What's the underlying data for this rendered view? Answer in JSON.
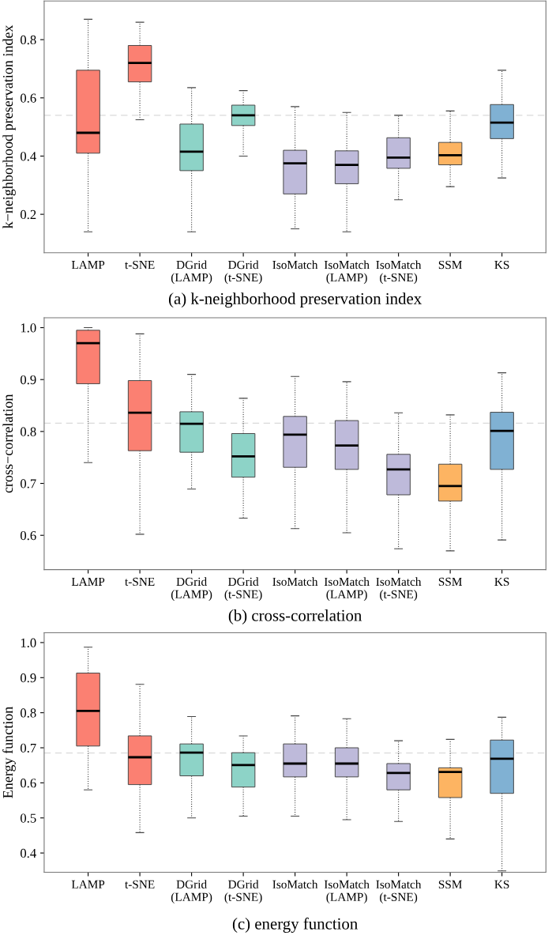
{
  "chart_data": [
    {
      "type": "box",
      "title": "(a) k-neighborhood preservation index",
      "ylabel": "k−neighborhood preservation index",
      "categories": [
        "LAMP",
        "t-SNE",
        "DGrid\n(LAMP)",
        "DGrid\n(t-SNE)",
        "IsoMatch",
        "IsoMatch\n(LAMP)",
        "IsoMatch\n(t-SNE)",
        "SSM",
        "KS"
      ],
      "colors": [
        "#fb8072",
        "#fb8072",
        "#8dd3c7",
        "#8dd3c7",
        "#bebada",
        "#bebada",
        "#bebada",
        "#fdb462",
        "#80b1d3"
      ],
      "boxes": [
        {
          "low": 0.14,
          "q1": 0.41,
          "median": 0.48,
          "q3": 0.695,
          "high": 0.87
        },
        {
          "low": 0.525,
          "q1": 0.655,
          "median": 0.72,
          "q3": 0.78,
          "high": 0.86
        },
        {
          "low": 0.14,
          "q1": 0.35,
          "median": 0.415,
          "q3": 0.51,
          "high": 0.635
        },
        {
          "low": 0.4,
          "q1": 0.505,
          "median": 0.54,
          "q3": 0.575,
          "high": 0.625
        },
        {
          "low": 0.15,
          "q1": 0.27,
          "median": 0.375,
          "q3": 0.42,
          "high": 0.57
        },
        {
          "low": 0.14,
          "q1": 0.305,
          "median": 0.37,
          "q3": 0.418,
          "high": 0.55
        },
        {
          "low": 0.25,
          "q1": 0.358,
          "median": 0.395,
          "q3": 0.463,
          "high": 0.54
        },
        {
          "low": 0.295,
          "q1": 0.37,
          "median": 0.403,
          "q3": 0.447,
          "high": 0.555
        },
        {
          "low": 0.325,
          "q1": 0.46,
          "median": 0.515,
          "q3": 0.577,
          "high": 0.695
        }
      ],
      "ylim": [
        0.068,
        0.933
      ],
      "yticks": [
        0.2,
        0.4,
        0.6,
        0.8
      ],
      "ref_lines": [
        {
          "axis": "y",
          "value": 0.54,
          "color": "#d9d9d9",
          "line_style": "dashed"
        }
      ]
    },
    {
      "type": "box",
      "title": "(b) cross-correlation",
      "ylabel": "cross−correlation",
      "categories": [
        "LAMP",
        "t-SNE",
        "DGrid\n(LAMP)",
        "DGrid\n(t-SNE)",
        "IsoMatch",
        "IsoMatch\n(LAMP)",
        "IsoMatch\n(t-SNE)",
        "SSM",
        "KS"
      ],
      "colors": [
        "#fb8072",
        "#fb8072",
        "#8dd3c7",
        "#8dd3c7",
        "#bebada",
        "#bebada",
        "#bebada",
        "#fdb462",
        "#80b1d3"
      ],
      "boxes": [
        {
          "low": 0.74,
          "q1": 0.892,
          "median": 0.97,
          "q3": 0.995,
          "high": 1.0
        },
        {
          "low": 0.602,
          "q1": 0.763,
          "median": 0.836,
          "q3": 0.898,
          "high": 0.988
        },
        {
          "low": 0.689,
          "q1": 0.76,
          "median": 0.815,
          "q3": 0.838,
          "high": 0.91
        },
        {
          "low": 0.633,
          "q1": 0.712,
          "median": 0.752,
          "q3": 0.796,
          "high": 0.864
        },
        {
          "low": 0.613,
          "q1": 0.731,
          "median": 0.794,
          "q3": 0.829,
          "high": 0.906
        },
        {
          "low": 0.605,
          "q1": 0.727,
          "median": 0.773,
          "q3": 0.821,
          "high": 0.896
        },
        {
          "low": 0.574,
          "q1": 0.678,
          "median": 0.727,
          "q3": 0.756,
          "high": 0.836
        },
        {
          "low": 0.57,
          "q1": 0.666,
          "median": 0.695,
          "q3": 0.737,
          "high": 0.832
        },
        {
          "low": 0.591,
          "q1": 0.727,
          "median": 0.801,
          "q3": 0.837,
          "high": 0.913
        }
      ],
      "ylim": [
        0.534,
        1.019
      ],
      "yticks": [
        {
          "value": 0.6,
          "label": "0.6"
        },
        {
          "value": 0.7,
          "label": "0.7"
        },
        {
          "value": 0.8,
          "label": "0.8"
        },
        {
          "value": 0.9,
          "label": "0.9"
        },
        {
          "value": 1.0,
          "label": "1.0"
        }
      ],
      "ref_lines": [
        {
          "axis": "y",
          "value": 0.816,
          "color": "#d9d9d9",
          "line_style": "dashed"
        }
      ]
    },
    {
      "type": "box",
      "title": "(c) energy function",
      "ylabel": "Energy function",
      "categories": [
        "LAMP",
        "t-SNE",
        "DGrid\n(LAMP)",
        "DGrid\n(t-SNE)",
        "IsoMatch",
        "IsoMatch\n(LAMP)",
        "IsoMatch\n(t-SNE)",
        "SSM",
        "KS"
      ],
      "colors": [
        "#fb8072",
        "#fb8072",
        "#8dd3c7",
        "#8dd3c7",
        "#bebada",
        "#bebada",
        "#bebada",
        "#fdb462",
        "#80b1d3"
      ],
      "boxes": [
        {
          "low": 0.58,
          "q1": 0.705,
          "median": 0.805,
          "q3": 0.913,
          "high": 0.987
        },
        {
          "low": 0.458,
          "q1": 0.595,
          "median": 0.673,
          "q3": 0.734,
          "high": 0.881
        },
        {
          "low": 0.5,
          "q1": 0.62,
          "median": 0.686,
          "q3": 0.711,
          "high": 0.789
        },
        {
          "low": 0.505,
          "q1": 0.588,
          "median": 0.651,
          "q3": 0.686,
          "high": 0.734
        },
        {
          "low": 0.505,
          "q1": 0.617,
          "median": 0.655,
          "q3": 0.711,
          "high": 0.791
        },
        {
          "low": 0.495,
          "q1": 0.617,
          "median": 0.655,
          "q3": 0.7,
          "high": 0.783
        },
        {
          "low": 0.49,
          "q1": 0.58,
          "median": 0.628,
          "q3": 0.655,
          "high": 0.72
        },
        {
          "low": 0.44,
          "q1": 0.558,
          "median": 0.631,
          "q3": 0.643,
          "high": 0.724
        },
        {
          "low": 0.349,
          "q1": 0.57,
          "median": 0.669,
          "q3": 0.722,
          "high": 0.787
        }
      ],
      "ylim": [
        0.345,
        1.028
      ],
      "yticks": [
        0.4,
        0.5,
        0.6,
        0.7,
        0.8,
        0.9,
        {
          "value": 1.0,
          "label": "1.0"
        }
      ],
      "ref_lines": [
        {
          "axis": "y",
          "value": 0.685,
          "color": "#d9d9d9",
          "line_style": "dashed"
        }
      ]
    }
  ]
}
